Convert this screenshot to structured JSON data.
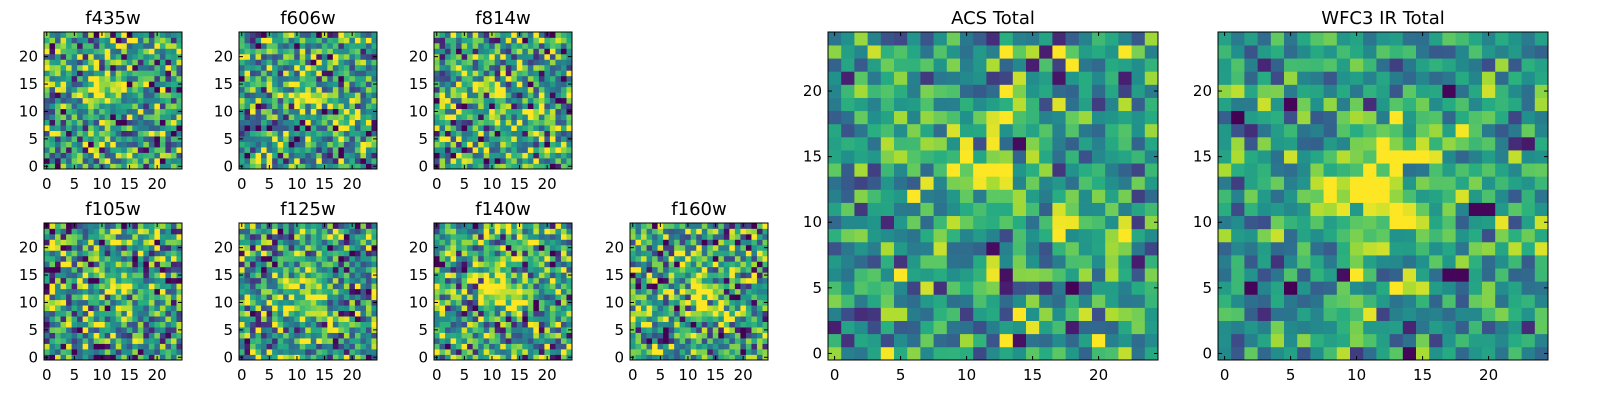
{
  "chart_data": [
    {
      "type": "heatmap",
      "title": "f435w",
      "grid_size": [
        25,
        25
      ],
      "xticks": [
        0,
        5,
        10,
        15,
        20
      ],
      "yticks": [
        0,
        5,
        10,
        15,
        20
      ],
      "xlim": [
        -0.5,
        24.5
      ],
      "ylim": [
        -0.5,
        24.5
      ],
      "colormap": "viridis",
      "pixel_noise_std": 0.3,
      "sources": [
        {
          "x": 10,
          "y": 15,
          "peak": 0.5,
          "sigma": 2.5
        }
      ]
    },
    {
      "type": "heatmap",
      "title": "f606w",
      "grid_size": [
        25,
        25
      ],
      "xticks": [
        0,
        5,
        10,
        15,
        20
      ],
      "yticks": [
        0,
        5,
        10,
        15,
        20
      ],
      "xlim": [
        -0.5,
        24.5
      ],
      "ylim": [
        -0.5,
        24.5
      ],
      "colormap": "viridis",
      "pixel_noise_std": 0.3,
      "sources": [
        {
          "x": 11,
          "y": 13,
          "peak": 0.5,
          "sigma": 2.0
        },
        {
          "x": 18,
          "y": 8,
          "peak": 0.4,
          "sigma": 1.5
        }
      ]
    },
    {
      "type": "heatmap",
      "title": "f814w",
      "grid_size": [
        25,
        25
      ],
      "xticks": [
        0,
        5,
        10,
        15,
        20
      ],
      "yticks": [
        0,
        5,
        10,
        15,
        20
      ],
      "xlim": [
        -0.5,
        24.5
      ],
      "ylim": [
        -0.5,
        24.5
      ],
      "colormap": "viridis",
      "pixel_noise_std": 0.3,
      "sources": [
        {
          "x": 11,
          "y": 14,
          "peak": 0.4,
          "sigma": 2.2
        },
        {
          "x": 18,
          "y": 9,
          "peak": 0.4,
          "sigma": 1.5
        }
      ]
    },
    {
      "type": "heatmap",
      "title": "f105w",
      "grid_size": [
        25,
        25
      ],
      "xticks": [
        0,
        5,
        10,
        15,
        20
      ],
      "yticks": [
        0,
        5,
        10,
        15,
        20
      ],
      "xlim": [
        -0.5,
        24.5
      ],
      "ylim": [
        -0.5,
        24.5
      ],
      "colormap": "viridis",
      "pixel_noise_std": 0.3,
      "sources": [
        {
          "x": 12,
          "y": 12,
          "peak": 0.3,
          "sigma": 2.5
        }
      ]
    },
    {
      "type": "heatmap",
      "title": "f125w",
      "grid_size": [
        25,
        25
      ],
      "xticks": [
        0,
        5,
        10,
        15,
        20
      ],
      "yticks": [
        0,
        5,
        10,
        15,
        20
      ],
      "xlim": [
        -0.5,
        24.5
      ],
      "ylim": [
        -0.5,
        24.5
      ],
      "colormap": "viridis",
      "pixel_noise_std": 0.3,
      "sources": [
        {
          "x": 12,
          "y": 13,
          "peak": 0.3,
          "sigma": 2.5
        }
      ]
    },
    {
      "type": "heatmap",
      "title": "f140w",
      "grid_size": [
        25,
        25
      ],
      "xticks": [
        0,
        5,
        10,
        15,
        20
      ],
      "yticks": [
        0,
        5,
        10,
        15,
        20
      ],
      "xlim": [
        -0.5,
        24.5
      ],
      "ylim": [
        -0.5,
        24.5
      ],
      "colormap": "viridis",
      "pixel_noise_std": 0.3,
      "sources": [
        {
          "x": 11,
          "y": 12,
          "peak": 0.45,
          "sigma": 3.0
        }
      ]
    },
    {
      "type": "heatmap",
      "title": "f160w",
      "grid_size": [
        25,
        25
      ],
      "xticks": [
        0,
        5,
        10,
        15,
        20
      ],
      "yticks": [
        0,
        5,
        10,
        15,
        20
      ],
      "xlim": [
        -0.5,
        24.5
      ],
      "ylim": [
        -0.5,
        24.5
      ],
      "colormap": "viridis",
      "pixel_noise_std": 0.3,
      "sources": [
        {
          "x": 12,
          "y": 12,
          "peak": 0.5,
          "sigma": 2.5
        }
      ]
    },
    {
      "type": "heatmap",
      "title": "ACS Total",
      "grid_size": [
        25,
        25
      ],
      "xticks": [
        0,
        5,
        10,
        15,
        20
      ],
      "yticks": [
        0,
        5,
        10,
        15,
        20
      ],
      "xlim": [
        -0.5,
        24.5
      ],
      "ylim": [
        -0.5,
        24.5
      ],
      "colormap": "viridis",
      "pixel_noise_std": 0.22,
      "sources": [
        {
          "x": 11,
          "y": 14,
          "peak": 0.5,
          "sigma": 1.8
        },
        {
          "x": 18,
          "y": 9,
          "peak": 0.4,
          "sigma": 1.3
        }
      ]
    },
    {
      "type": "heatmap",
      "title": "WFC3 IR Total",
      "grid_size": [
        25,
        25
      ],
      "xticks": [
        0,
        5,
        10,
        15,
        20
      ],
      "yticks": [
        0,
        5,
        10,
        15,
        20
      ],
      "xlim": [
        -0.5,
        24.5
      ],
      "ylim": [
        -0.5,
        24.5
      ],
      "colormap": "viridis",
      "pixel_noise_std": 0.2,
      "sources": [
        {
          "x": 12,
          "y": 13,
          "peak": 0.5,
          "sigma": 2.8
        }
      ],
      "dark_pixels": [
        [
          5,
          19
        ],
        [
          17,
          20
        ],
        [
          19,
          11
        ],
        [
          20,
          11
        ],
        [
          17,
          6
        ],
        [
          18,
          6
        ],
        [
          2,
          5
        ],
        [
          14,
          0
        ]
      ]
    }
  ]
}
